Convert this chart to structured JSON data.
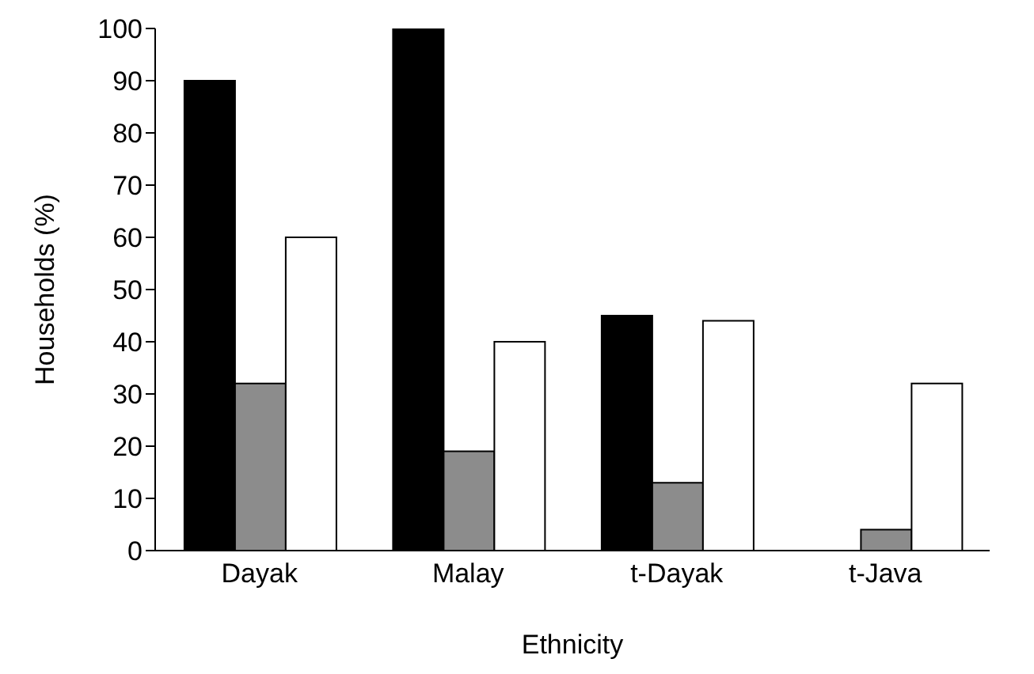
{
  "chart_data": {
    "type": "bar",
    "xlabel": "Ethnicity",
    "ylabel": "Households (%)",
    "categories": [
      "Dayak",
      "Malay",
      "t-Dayak",
      "t-Java"
    ],
    "series": [
      {
        "color": "#000000",
        "values": [
          90,
          100,
          45,
          0
        ]
      },
      {
        "color": "#8c8c8c",
        "values": [
          32,
          19,
          13,
          4
        ]
      },
      {
        "color": "#ffffff",
        "values": [
          60,
          40,
          44,
          32
        ]
      }
    ],
    "ylim": [
      0,
      100
    ],
    "yticks": [
      0,
      10,
      20,
      30,
      40,
      50,
      60,
      70,
      80,
      90,
      100
    ],
    "grid": false,
    "legend": false
  }
}
